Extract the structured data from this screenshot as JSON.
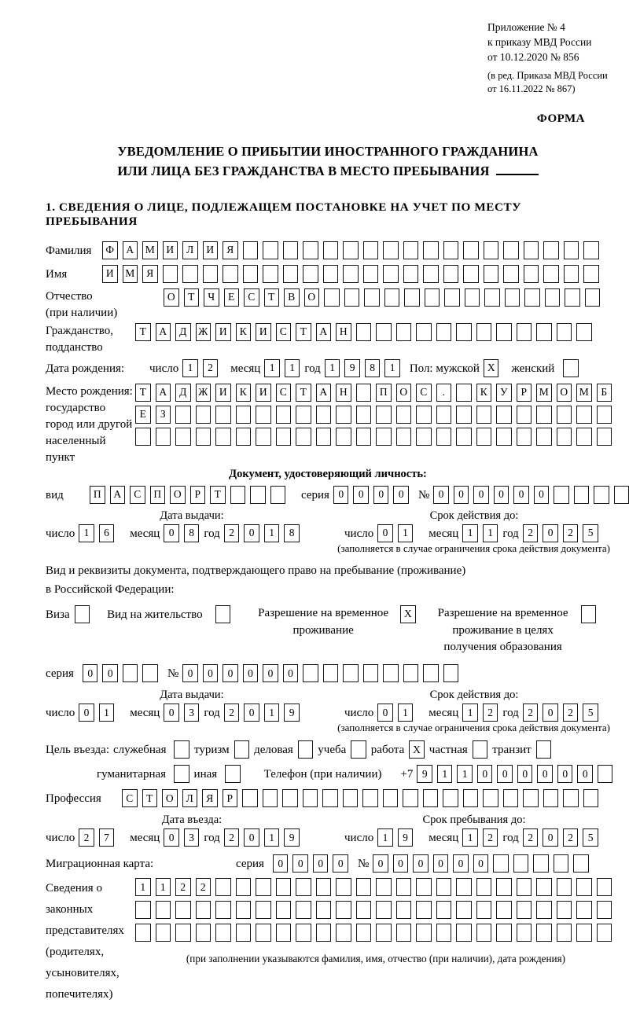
{
  "header": {
    "line1": "Приложение № 4",
    "line2": "к приказу МВД России",
    "line3": "от 10.12.2020 № 856",
    "line4": "(в ред. Приказа МВД России",
    "line5": "от 16.11.2022 № 867)",
    "forma": "ФОРМА"
  },
  "title": {
    "line1": "УВЕДОМЛЕНИЕ О ПРИБЫТИИ ИНОСТРАННОГО ГРАЖДАНИНА",
    "line2": "ИЛИ ЛИЦА БЕЗ ГРАЖДАНСТВА В МЕСТО ПРЕБЫВАНИЯ"
  },
  "section1_heading": "1. СВЕДЕНИЯ О ЛИЦЕ, ПОДЛЕЖАЩЕМ ПОСТАНОВКЕ НА УЧЕТ ПО МЕСТУ ПРЕБЫВАНИЯ",
  "person": {
    "surname_label": "Фамилия",
    "surname": {
      "v": "ФАМИЛИЯ",
      "n": 25
    },
    "name_label": "Имя",
    "name": {
      "v": "ИМЯ",
      "n": 25
    },
    "patronymic_label": "Отчество",
    "patronymic_label2": "(при наличии)",
    "patronymic": {
      "v": "ОТЧЕСТВО",
      "n": 22
    },
    "citizenship_label": "Гражданство,",
    "citizenship_label2": "подданство",
    "citizenship": {
      "v": "ТАДЖИКИСТАН",
      "n": 23
    },
    "birth_date_label": "Дата рождения:",
    "birth_day_label": "число",
    "birth_day": {
      "v": "12",
      "n": 2
    },
    "birth_month_label": "месяц",
    "birth_month": {
      "v": "11",
      "n": 2
    },
    "birth_year_label": "год",
    "birth_year": {
      "v": "1981",
      "n": 4
    },
    "sex_label": "Пол: мужской",
    "sex_male": {
      "v": "X",
      "n": 1
    },
    "sex_female_label": "женский",
    "sex_female": {
      "v": "",
      "n": 1
    },
    "birth_place_label1": "Место рождения:",
    "birth_place_label2": "государство",
    "birth_place_label3": "город или другой",
    "birth_place_label4": "населенный пункт",
    "birth_place_row1": {
      "v": "ТАДЖИКИСТАН ПОС. КУРМОМБ",
      "n": 24
    },
    "birth_place_row2": {
      "v": "ЕЗ",
      "n": 24
    },
    "birth_place_row3": {
      "v": "",
      "n": 24
    }
  },
  "identity_doc": {
    "heading": "Документ, удостоверяющий личность:",
    "kind_label": "вид",
    "kind": {
      "v": "ПАСПОРТ",
      "n": 10
    },
    "series_label": "серия",
    "series": {
      "v": "0000",
      "n": 4
    },
    "number_label": "№",
    "number": {
      "v": "000000",
      "n": 11
    },
    "issue_heading": "Дата выдачи:",
    "issue_day_label": "число",
    "issue_day": {
      "v": "16",
      "n": 2
    },
    "issue_month_label": "месяц",
    "issue_month": {
      "v": "08",
      "n": 2
    },
    "issue_year_label": "год",
    "issue_year": {
      "v": "2018",
      "n": 4
    },
    "expiry_heading": "Срок действия до:",
    "expiry_day_label": "число",
    "expiry_day": {
      "v": "01",
      "n": 2
    },
    "expiry_month_label": "месяц",
    "expiry_month": {
      "v": "11",
      "n": 2
    },
    "expiry_year_label": "год",
    "expiry_year": {
      "v": "2025",
      "n": 4
    },
    "note": "(заполняется в случае ограничения срока действия документа)"
  },
  "residence_doc": {
    "intro1": "Вид и реквизиты документа, подтверждающего право на пребывание (проживание)",
    "intro2": "в Российской Федерации:",
    "visa_label": "Виза",
    "visa": {
      "v": "",
      "n": 1
    },
    "residence_permit_label": "Вид на жительство",
    "residence_permit": {
      "v": "",
      "n": 1
    },
    "temp_permit_label1": "Разрешение на временное",
    "temp_permit_label2": "проживание",
    "temp_permit": {
      "v": "X",
      "n": 1
    },
    "edu_permit_label1": "Разрешение на временное",
    "edu_permit_label2": "проживание в целях",
    "edu_permit_label3": "получения образования",
    "edu_permit": {
      "v": "",
      "n": 1
    },
    "series_label": "серия",
    "series": {
      "v": "00",
      "n": 4
    },
    "number_label": "№",
    "number": {
      "v": "000000",
      "n": 14
    },
    "issue_heading": "Дата выдачи:",
    "issue_day_label": "число",
    "issue_day": {
      "v": "01",
      "n": 2
    },
    "issue_month_label": "месяц",
    "issue_month": {
      "v": "03",
      "n": 2
    },
    "issue_year_label": "год",
    "issue_year": {
      "v": "2019",
      "n": 4
    },
    "expiry_heading": "Срок действия до:",
    "expiry_day_label": "число",
    "expiry_day": {
      "v": "01",
      "n": 2
    },
    "expiry_month_label": "месяц",
    "expiry_month": {
      "v": "12",
      "n": 2
    },
    "expiry_year_label": "год",
    "expiry_year": {
      "v": "2025",
      "n": 4
    },
    "note": "(заполняется в случае ограничения срока действия документа)"
  },
  "visit": {
    "purpose_label": "Цель въезда:",
    "purposes": [
      {
        "label": "служебная",
        "box": {
          "v": "",
          "n": 1
        }
      },
      {
        "label": "туризм",
        "box": {
          "v": "",
          "n": 1
        }
      },
      {
        "label": "деловая",
        "box": {
          "v": "",
          "n": 1
        }
      },
      {
        "label": "учеба",
        "box": {
          "v": "",
          "n": 1
        }
      },
      {
        "label": "работа",
        "box": {
          "v": "X",
          "n": 1
        }
      },
      {
        "label": "частная",
        "box": {
          "v": "",
          "n": 1
        }
      },
      {
        "label": "транзит",
        "box": {
          "v": "",
          "n": 1
        }
      }
    ],
    "purpose_humanitarian_label": "гуманитарная",
    "purpose_humanitarian": {
      "v": "",
      "n": 1
    },
    "purpose_other_label": "иная",
    "purpose_other": {
      "v": "",
      "n": 1
    },
    "phone_label": "Телефон (при наличии)",
    "phone_prefix": "+7",
    "phone": {
      "v": "911000000",
      "n": 10
    },
    "profession_label": "Профессия",
    "profession": {
      "v": "СТОЛЯР",
      "n": 24
    },
    "entry_heading": "Дата въезда:",
    "entry_day_label": "число",
    "entry_day": {
      "v": "27",
      "n": 2
    },
    "entry_month_label": "месяц",
    "entry_month": {
      "v": "03",
      "n": 2
    },
    "entry_year_label": "год",
    "entry_year": {
      "v": "2019",
      "n": 4
    },
    "stay_heading": "Срок пребывания до:",
    "stay_day_label": "число",
    "stay_day": {
      "v": "19",
      "n": 2
    },
    "stay_month_label": "месяц",
    "stay_month": {
      "v": "12",
      "n": 2
    },
    "stay_year_label": "год",
    "stay_year": {
      "v": "2025",
      "n": 4
    }
  },
  "migration_card": {
    "label": "Миграционная карта:",
    "series_label": "серия",
    "series": {
      "v": "0000",
      "n": 4
    },
    "number_label": "№",
    "number": {
      "v": "000000",
      "n": 11
    }
  },
  "representatives": {
    "label1": "Сведения о",
    "label2": "законных",
    "label3": "представителях",
    "label4": "(родителях,",
    "label5": "усыновителях,",
    "label6": "попечителях)",
    "row1": {
      "v": "1122",
      "n": 24
    },
    "row2": {
      "v": "",
      "n": 24
    },
    "row3": {
      "v": "",
      "n": 24
    },
    "note": "(при заполнении указываются фамилия, имя, отчество (при наличии), дата рождения)"
  }
}
